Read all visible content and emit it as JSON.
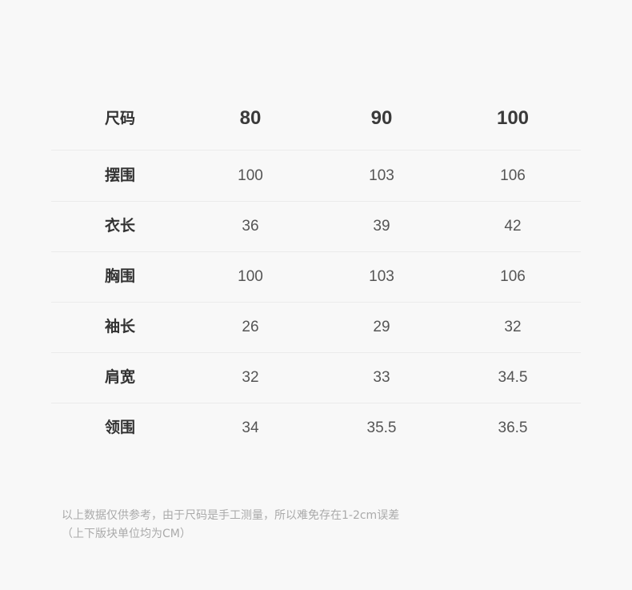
{
  "table": {
    "header": [
      "尺码",
      "80",
      "90",
      "100"
    ],
    "rows": [
      [
        "摆围",
        "100",
        "103",
        "106"
      ],
      [
        "衣长",
        "36",
        "39",
        "42"
      ],
      [
        "胸围",
        "100",
        "103",
        "106"
      ],
      [
        "袖长",
        "26",
        "29",
        "32"
      ],
      [
        "肩宽",
        "32",
        "33",
        "34.5"
      ],
      [
        "领围",
        "34",
        "35.5",
        "36.5"
      ]
    ]
  },
  "note": {
    "line1": "以上数据仅供参考，由于尺码是手工测量，所以难免存在1-2cm误差",
    "line2": "（上下版块单位均为CM）"
  }
}
